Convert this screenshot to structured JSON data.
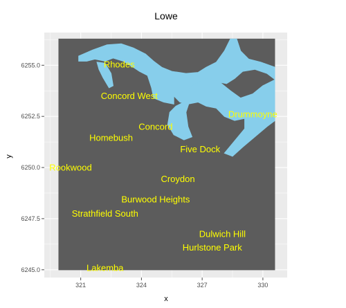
{
  "chart_data": {
    "type": "heatmap",
    "title": "Lowe",
    "xlabel": "x",
    "ylabel": "y",
    "xlim": [
      319.2,
      331.2
    ],
    "ylim": [
      6244.62,
      6256.6
    ],
    "x_ticks": [
      321,
      324,
      327,
      330
    ],
    "y_ticks": [
      6245.0,
      6247.5,
      6250.0,
      6252.5,
      6255.0
    ],
    "x_tick_labels": [
      "321",
      "324",
      "327",
      "330"
    ],
    "y_tick_labels": [
      "6245.0",
      "6247.5",
      "6250.0",
      "6252.5",
      "6255.0"
    ],
    "grid": true,
    "raster_extent": {
      "x": [
        319.9,
        330.6
      ],
      "y": [
        6244.98,
        6256.3
      ]
    },
    "colors": {
      "land": "#5c5c5c",
      "water": "#87ceeb",
      "panel": "#ebebeb",
      "grid": "#ffffff",
      "label": "#ffff00"
    },
    "water_polygons": [
      [
        [
          320.9,
          6255.45
        ],
        [
          321.6,
          6255.75
        ],
        [
          322.3,
          6256.0
        ],
        [
          323.0,
          6256.05
        ],
        [
          323.6,
          6255.85
        ],
        [
          324.2,
          6255.55
        ],
        [
          324.6,
          6255.2
        ],
        [
          325.0,
          6254.9
        ],
        [
          325.5,
          6254.7
        ],
        [
          326.2,
          6254.6
        ],
        [
          326.8,
          6254.65
        ],
        [
          327.2,
          6254.9
        ],
        [
          327.7,
          6255.15
        ],
        [
          328.1,
          6255.7
        ],
        [
          328.4,
          6256.3
        ],
        [
          328.7,
          6256.3
        ],
        [
          328.9,
          6255.7
        ],
        [
          329.3,
          6255.3
        ],
        [
          329.9,
          6255.15
        ],
        [
          330.6,
          6254.9
        ],
        [
          330.6,
          6254.3
        ],
        [
          330.2,
          6254.6
        ],
        [
          329.6,
          6254.8
        ],
        [
          329.0,
          6254.7
        ],
        [
          328.6,
          6254.35
        ],
        [
          328.2,
          6254.1
        ],
        [
          327.7,
          6254.2
        ],
        [
          327.2,
          6254.35
        ],
        [
          326.6,
          6254.05
        ],
        [
          326.1,
          6253.75
        ],
        [
          325.6,
          6253.5
        ],
        [
          325.6,
          6253.1
        ],
        [
          325.1,
          6253.2
        ],
        [
          324.6,
          6253.4
        ],
        [
          324.5,
          6253.9
        ],
        [
          324.3,
          6254.5
        ],
        [
          323.9,
          6254.7
        ],
        [
          323.6,
          6254.9
        ],
        [
          323.1,
          6255.2
        ],
        [
          322.6,
          6255.35
        ],
        [
          322.2,
          6255.2
        ],
        [
          321.7,
          6255.3
        ],
        [
          321.3,
          6255.2
        ],
        [
          320.9,
          6255.2
        ]
      ],
      [
        [
          321.8,
          6255.15
        ],
        [
          322.2,
          6255.1
        ],
        [
          322.5,
          6254.6
        ],
        [
          322.6,
          6254.0
        ],
        [
          322.4,
          6253.9
        ],
        [
          322.1,
          6254.4
        ],
        [
          321.9,
          6254.8
        ]
      ],
      [
        [
          325.6,
          6253.5
        ],
        [
          326.1,
          6253.75
        ],
        [
          326.7,
          6254.1
        ],
        [
          327.3,
          6254.4
        ],
        [
          327.9,
          6254.15
        ],
        [
          328.4,
          6253.75
        ],
        [
          328.9,
          6253.4
        ],
        [
          329.5,
          6253.6
        ],
        [
          330.0,
          6254.0
        ],
        [
          330.6,
          6254.3
        ],
        [
          330.6,
          6252.3
        ],
        [
          330.2,
          6252.0
        ],
        [
          329.6,
          6251.5
        ],
        [
          329.0,
          6251.0
        ],
        [
          328.5,
          6250.55
        ],
        [
          328.1,
          6250.7
        ],
        [
          328.6,
          6251.3
        ],
        [
          329.1,
          6251.9
        ],
        [
          329.1,
          6252.4
        ],
        [
          328.6,
          6252.3
        ],
        [
          328.1,
          6252.5
        ],
        [
          327.7,
          6252.9
        ],
        [
          327.2,
          6253.0
        ],
        [
          326.8,
          6253.2
        ],
        [
          326.3,
          6253.1
        ],
        [
          325.9,
          6253.2
        ]
      ],
      [
        [
          326.1,
          6253.2
        ],
        [
          326.4,
          6253.3
        ],
        [
          326.2,
          6252.7
        ],
        [
          326.3,
          6252.0
        ],
        [
          326.5,
          6251.5
        ],
        [
          326.1,
          6251.35
        ],
        [
          325.6,
          6251.6
        ],
        [
          325.3,
          6252.1
        ],
        [
          325.4,
          6252.7
        ],
        [
          325.7,
          6253.0
        ]
      ]
    ],
    "places": [
      {
        "name": "Rhodes",
        "x": 322.9,
        "y": 6255.05
      },
      {
        "name": "Concord West",
        "x": 323.4,
        "y": 6253.5
      },
      {
        "name": "Concord",
        "x": 324.7,
        "y": 6252.0
      },
      {
        "name": "Homebush",
        "x": 322.5,
        "y": 6251.45
      },
      {
        "name": "Drummoyne",
        "x": 329.5,
        "y": 6252.6
      },
      {
        "name": "Five Dock",
        "x": 326.9,
        "y": 6250.9
      },
      {
        "name": "Rookwood",
        "x": 320.5,
        "y": 6250.0
      },
      {
        "name": "Croydon",
        "x": 325.8,
        "y": 6249.45
      },
      {
        "name": "Burwood Heights",
        "x": 324.7,
        "y": 6248.45
      },
      {
        "name": "Strathfield South",
        "x": 322.2,
        "y": 6247.75
      },
      {
        "name": "Dulwich Hill",
        "x": 328.0,
        "y": 6246.75
      },
      {
        "name": "Hurlstone Park",
        "x": 327.5,
        "y": 6246.1
      },
      {
        "name": "Lakemba",
        "x": 322.2,
        "y": 6245.1
      }
    ]
  }
}
